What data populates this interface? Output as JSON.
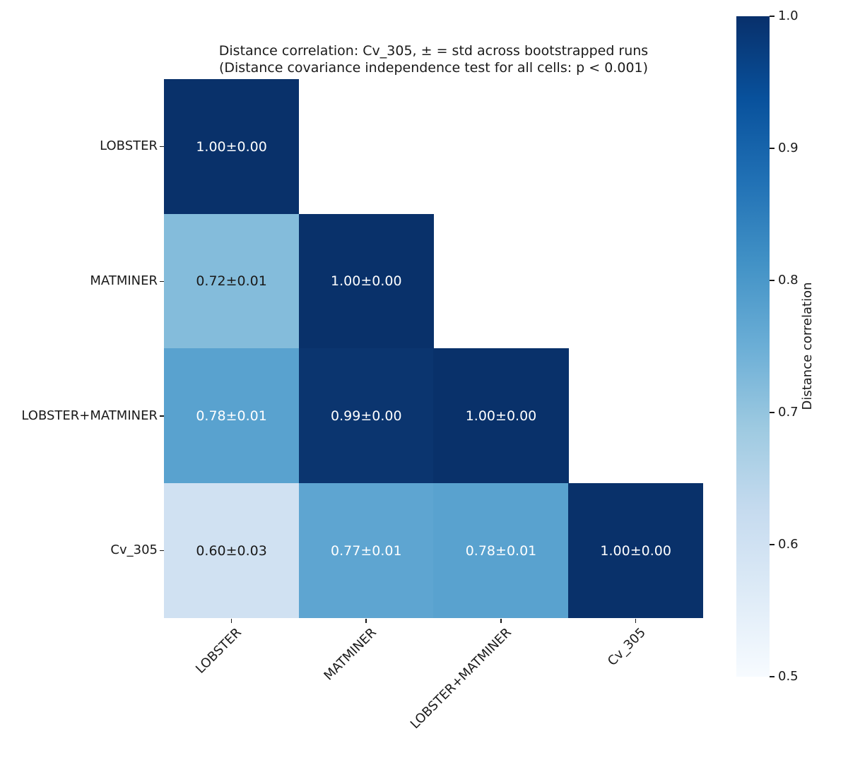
{
  "figure": {
    "background": "#ffffff",
    "text_color": "#1a1a1a"
  },
  "chart_data": {
    "type": "heatmap",
    "title": "Distance correlation: Cv_305, ± = std across bootstrapped runs",
    "subtitle": "(Distance covariance independence test for all cells: p < 0.001)",
    "colormap": "Blues",
    "shape": "lower-triangle",
    "categories": [
      "LOBSTER",
      "MATMINER",
      "LOBSTER+MATMINER",
      "Cv_305"
    ],
    "x_categories": [
      "LOBSTER",
      "MATMINER",
      "LOBSTER+MATMINER",
      "Cv_305"
    ],
    "cells": [
      {
        "row": 0,
        "col": 0,
        "label": "1.00±0.00",
        "value": 1.0,
        "std": 0.0,
        "bg": "#09316a",
        "fg": "#ffffff"
      },
      {
        "row": 1,
        "col": 0,
        "label": "0.72±0.01",
        "value": 0.72,
        "std": 0.01,
        "bg": "#84bcdb",
        "fg": "#1a1a1a"
      },
      {
        "row": 1,
        "col": 1,
        "label": "1.00±0.00",
        "value": 1.0,
        "std": 0.0,
        "bg": "#09316a",
        "fg": "#ffffff"
      },
      {
        "row": 2,
        "col": 0,
        "label": "0.78±0.01",
        "value": 0.78,
        "std": 0.01,
        "bg": "#59a2cf",
        "fg": "#ffffff"
      },
      {
        "row": 2,
        "col": 1,
        "label": "0.99±0.00",
        "value": 0.99,
        "std": 0.0,
        "bg": "#0b356f",
        "fg": "#ffffff"
      },
      {
        "row": 2,
        "col": 2,
        "label": "1.00±0.00",
        "value": 1.0,
        "std": 0.0,
        "bg": "#09316a",
        "fg": "#ffffff"
      },
      {
        "row": 3,
        "col": 0,
        "label": "0.60±0.03",
        "value": 0.6,
        "std": 0.03,
        "bg": "#d0e1f2",
        "fg": "#1a1a1a"
      },
      {
        "row": 3,
        "col": 1,
        "label": "0.77±0.01",
        "value": 0.77,
        "std": 0.01,
        "bg": "#5ea5d1",
        "fg": "#ffffff"
      },
      {
        "row": 3,
        "col": 2,
        "label": "0.78±0.01",
        "value": 0.78,
        "std": 0.01,
        "bg": "#59a2cf",
        "fg": "#ffffff"
      },
      {
        "row": 3,
        "col": 3,
        "label": "1.00±0.00",
        "value": 1.0,
        "std": 0.0,
        "bg": "#09316a",
        "fg": "#ffffff"
      }
    ],
    "colorbar": {
      "label": "Distance correlation",
      "vmin": 0.5,
      "vmax": 1.0,
      "ticks": [
        "1.0",
        "0.9",
        "0.8",
        "0.7",
        "0.6",
        "0.5"
      ],
      "gradient_top_to_bottom": [
        "#08306b",
        "#08519c",
        "#2171b5",
        "#4292c6",
        "#6baed6",
        "#9ecae1",
        "#c6dbef",
        "#deebf7",
        "#f7fbff"
      ]
    }
  }
}
